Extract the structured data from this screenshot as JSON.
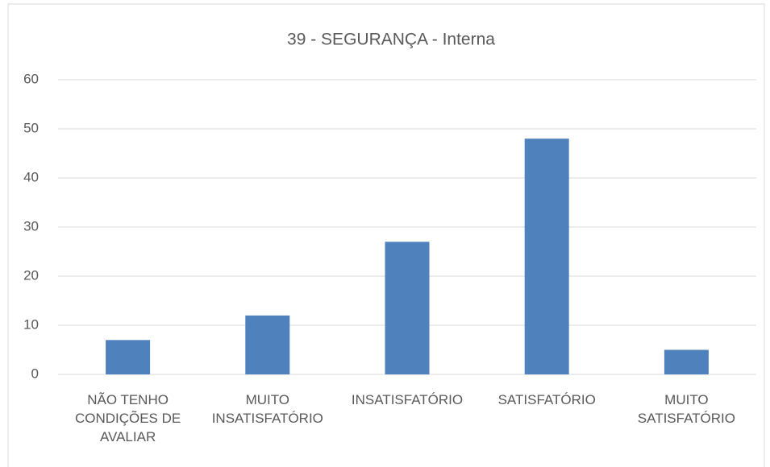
{
  "chart_data": {
    "type": "bar",
    "title": "39 - SEGURANÇA - Interna",
    "categories": [
      "NÃO TENHO CONDIÇÕES DE AVALIAR",
      "MUITO INSATISFATÓRIO",
      "INSATISFATÓRIO",
      "SATISFATÓRIO",
      "MUITO SATISFATÓRIO"
    ],
    "values": [
      7,
      12,
      27,
      48,
      5
    ],
    "color": "#4f81bd",
    "ylim": [
      0,
      60
    ],
    "yticks": [
      0,
      10,
      20,
      30,
      40,
      50,
      60
    ],
    "grid": true
  }
}
